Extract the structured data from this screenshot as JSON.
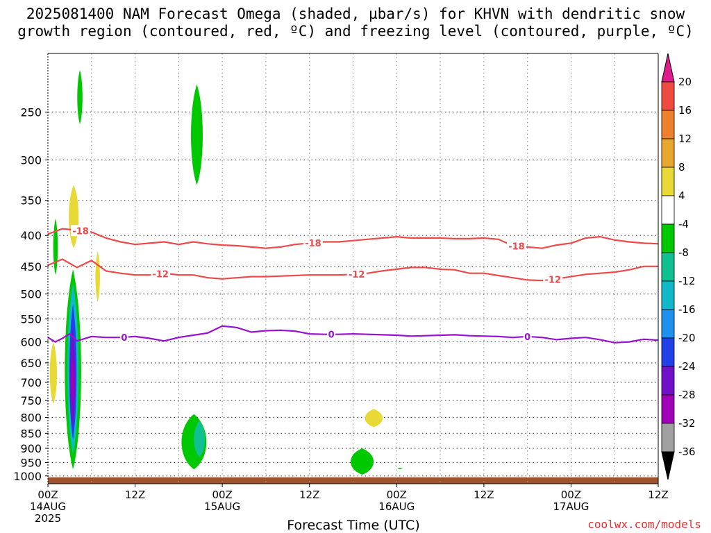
{
  "title_line1": "2025081400 NAM Forecast Omega (shaded, µbar/s) for KHVN with dendritic snow",
  "title_line2": "growth region (contoured, red, ºC) and freezing level (contoured, purple, ºC)",
  "credit": "coolwx.com/models",
  "chart_data": {
    "type": "contour",
    "xlabel": "Forecast Time (UTC)",
    "x_ticks": [
      {
        "hour": 0,
        "l1": "00Z",
        "l2": "14AUG",
        "l3": "2025"
      },
      {
        "hour": 12,
        "l1": "12Z",
        "l2": "",
        "l3": ""
      },
      {
        "hour": 24,
        "l1": "00Z",
        "l2": "15AUG",
        "l3": ""
      },
      {
        "hour": 36,
        "l1": "12Z",
        "l2": "",
        "l3": ""
      },
      {
        "hour": 48,
        "l1": "00Z",
        "l2": "16AUG",
        "l3": ""
      },
      {
        "hour": 60,
        "l1": "12Z",
        "l2": "",
        "l3": ""
      },
      {
        "hour": 72,
        "l1": "00Z",
        "l2": "17AUG",
        "l3": ""
      },
      {
        "hour": 84,
        "l1": "12Z",
        "l2": "",
        "l3": ""
      }
    ],
    "xlim": [
      0,
      84
    ],
    "y_ticks": [
      250,
      300,
      350,
      400,
      450,
      500,
      550,
      600,
      650,
      700,
      750,
      800,
      850,
      900,
      950,
      1000
    ],
    "ylim": [
      200,
      1030
    ],
    "y_scale": "log-pressure",
    "grid": true,
    "colorbar": {
      "labels": [
        "20",
        "16",
        "12",
        "8",
        "4",
        "-4",
        "-8",
        "-12",
        "-16",
        "-20",
        "-24",
        "-28",
        "-32",
        "-36"
      ],
      "colors": [
        "#e01b8a",
        "#f04b3f",
        "#ee7f2d",
        "#e8a830",
        "#e8d936",
        "#ffffff",
        "#00c800",
        "#10c090",
        "#10b8c8",
        "#1e90f0",
        "#2040e8",
        "#7010c8",
        "#a000b8",
        "#a0a0a0"
      ]
    },
    "contour_lines": [
      {
        "name": "-18",
        "color": "#f04848",
        "x": [
          0,
          2,
          4,
          6,
          8,
          10,
          12,
          14,
          16,
          18,
          20,
          22,
          24,
          26,
          28,
          30,
          32,
          34,
          36,
          38,
          40,
          42,
          44,
          46,
          48,
          50,
          52,
          54,
          56,
          58,
          60,
          62,
          64,
          66,
          68,
          70,
          72,
          74,
          76,
          78,
          80,
          82,
          84
        ],
        "y": [
          398,
          390,
          392,
          395,
          404,
          410,
          414,
          412,
          410,
          414,
          410,
          413,
          415,
          416,
          418,
          420,
          418,
          414,
          412,
          410,
          410,
          408,
          406,
          404,
          402,
          404,
          404,
          404,
          405,
          405,
          404,
          406,
          416,
          418,
          420,
          415,
          412,
          404,
          402,
          407,
          410,
          412,
          413
        ],
        "labels": [
          {
            "x": 4.5,
            "text": "-18"
          },
          {
            "x": 36.5,
            "text": "-18"
          },
          {
            "x": 64.5,
            "text": "-18"
          }
        ]
      },
      {
        "name": "-12",
        "color": "#f04848",
        "x": [
          0,
          2,
          4,
          6,
          8,
          10,
          12,
          14,
          16,
          18,
          20,
          22,
          24,
          26,
          28,
          30,
          32,
          34,
          36,
          38,
          40,
          42,
          44,
          46,
          48,
          50,
          52,
          54,
          56,
          58,
          60,
          62,
          64,
          66,
          68,
          70,
          72,
          74,
          76,
          78,
          80,
          82,
          84
        ],
        "y": [
          448,
          438,
          452,
          440,
          458,
          462,
          465,
          465,
          462,
          465,
          465,
          470,
          472,
          470,
          468,
          468,
          467,
          466,
          465,
          465,
          465,
          464,
          462,
          458,
          455,
          452,
          452,
          455,
          456,
          462,
          462,
          466,
          470,
          474,
          475,
          472,
          468,
          464,
          462,
          460,
          456,
          450,
          450
        ],
        "labels": [
          {
            "x": 15.5,
            "text": "-12"
          },
          {
            "x": 42.5,
            "text": "-12"
          },
          {
            "x": 69.5,
            "text": "-12"
          }
        ]
      },
      {
        "name": "0",
        "color": "#9a10d0",
        "x": [
          0,
          1,
          2,
          3,
          4,
          6,
          8,
          10,
          12,
          14,
          16,
          18,
          20,
          22,
          24,
          26,
          28,
          30,
          32,
          34,
          36,
          38,
          40,
          42,
          44,
          46,
          48,
          50,
          52,
          54,
          56,
          58,
          60,
          62,
          64,
          66,
          68,
          70,
          72,
          74,
          76,
          78,
          80,
          82,
          84
        ],
        "y": [
          590,
          600,
          592,
          582,
          598,
          588,
          590,
          590,
          588,
          592,
          598,
          590,
          585,
          580,
          565,
          568,
          578,
          575,
          574,
          576,
          582,
          583,
          583,
          582,
          583,
          584,
          585,
          587,
          586,
          585,
          584,
          586,
          587,
          588,
          590,
          588,
          590,
          595,
          592,
          590,
          595,
          602,
          600,
          594,
          596
        ],
        "labels": [
          {
            "x": 10.5,
            "text": "0"
          },
          {
            "x": 39,
            "text": "0"
          },
          {
            "x": 66,
            "text": "0"
          }
        ]
      }
    ],
    "omega_features": [
      {
        "label": "-4",
        "color": "#00c800",
        "x": [
          4,
          4.8
        ],
        "y": [
          213,
          262
        ]
      },
      {
        "label": "-4",
        "color": "#00c800",
        "x": [
          19.6,
          21.4
        ],
        "y": [
          225,
          330
        ]
      },
      {
        "label": "4",
        "color": "#e8d936",
        "x": [
          2.8,
          4.3
        ],
        "y": [
          330,
          420
        ]
      },
      {
        "label": "4",
        "color": "#e8d936",
        "x": [
          6.5,
          7.2
        ],
        "y": [
          425,
          515
        ]
      },
      {
        "label": "-4",
        "color": "#00c800",
        "x": [
          0.7,
          1.4
        ],
        "y": [
          375,
          465
        ]
      },
      {
        "label": "4",
        "color": "#e8d936",
        "x": [
          0.2,
          1.3
        ],
        "y": [
          600,
          760
        ]
      },
      {
        "label": "-4",
        "color": "#00c800",
        "x": [
          2.2,
          4.7
        ],
        "y": [
          455,
          975
        ]
      },
      {
        "label": "-16",
        "color": "#10b8c8",
        "x": [
          2.6,
          4.3
        ],
        "y": [
          480,
          920
        ]
      },
      {
        "label": "-24",
        "color": "#2040e8",
        "x": [
          2.9,
          4.0
        ],
        "y": [
          520,
          870
        ]
      },
      {
        "label": "-28",
        "color": "#7010c8",
        "x": [
          3.0,
          3.8
        ],
        "y": [
          570,
          830
        ]
      },
      {
        "label": "-32",
        "color": "#a000b8",
        "x": [
          3.2,
          3.7
        ],
        "y": [
          640,
          760
        ]
      },
      {
        "label": "-4",
        "color": "#00c800",
        "x": [
          18.2,
          22
        ],
        "y": [
          790,
          975
        ]
      },
      {
        "label": "-8",
        "color": "#10c090",
        "x": [
          20,
          21.7
        ],
        "y": [
          810,
          930
        ]
      },
      {
        "label": "4",
        "color": "#e8d936",
        "x": [
          43.5,
          46.2
        ],
        "y": [
          775,
          830
        ]
      },
      {
        "label": "-4",
        "color": "#00c800",
        "x": [
          41.5,
          45
        ],
        "y": [
          900,
          995
        ]
      },
      {
        "label": "-4",
        "color": "#00c800",
        "x": [
          48.1,
          48.8
        ],
        "y": [
          970,
          975
        ]
      }
    ],
    "terrain_color": "#a0522d"
  }
}
